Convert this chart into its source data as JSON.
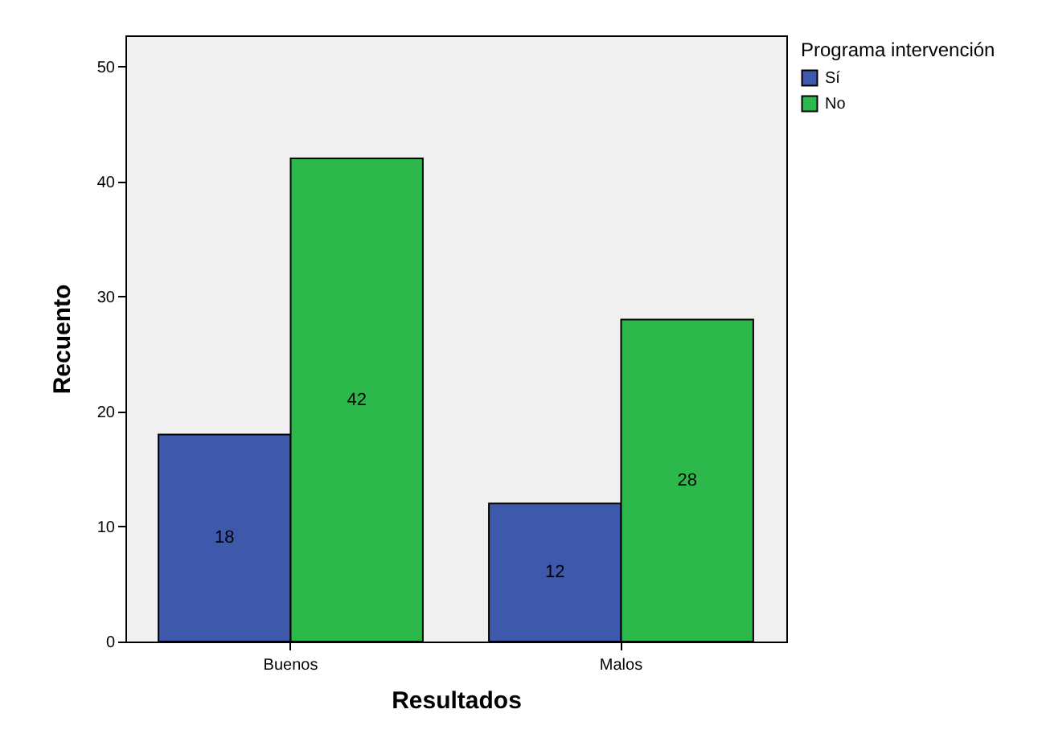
{
  "chart_data": {
    "type": "bar",
    "xlabel": "Resultados",
    "ylabel": "Recuento",
    "legend_title": "Programa intervención",
    "categories": [
      "Buenos",
      "Malos"
    ],
    "series": [
      {
        "name": "Sí",
        "color": "#3e58ac",
        "values": [
          18,
          12
        ]
      },
      {
        "name": "No",
        "color": "#2db84b",
        "values": [
          42,
          28
        ]
      }
    ],
    "ylim": [
      0,
      52.7
    ],
    "yticks": [
      0,
      10,
      20,
      30,
      40,
      50
    ],
    "grid": false,
    "legend": "top right",
    "data_labels": true
  }
}
